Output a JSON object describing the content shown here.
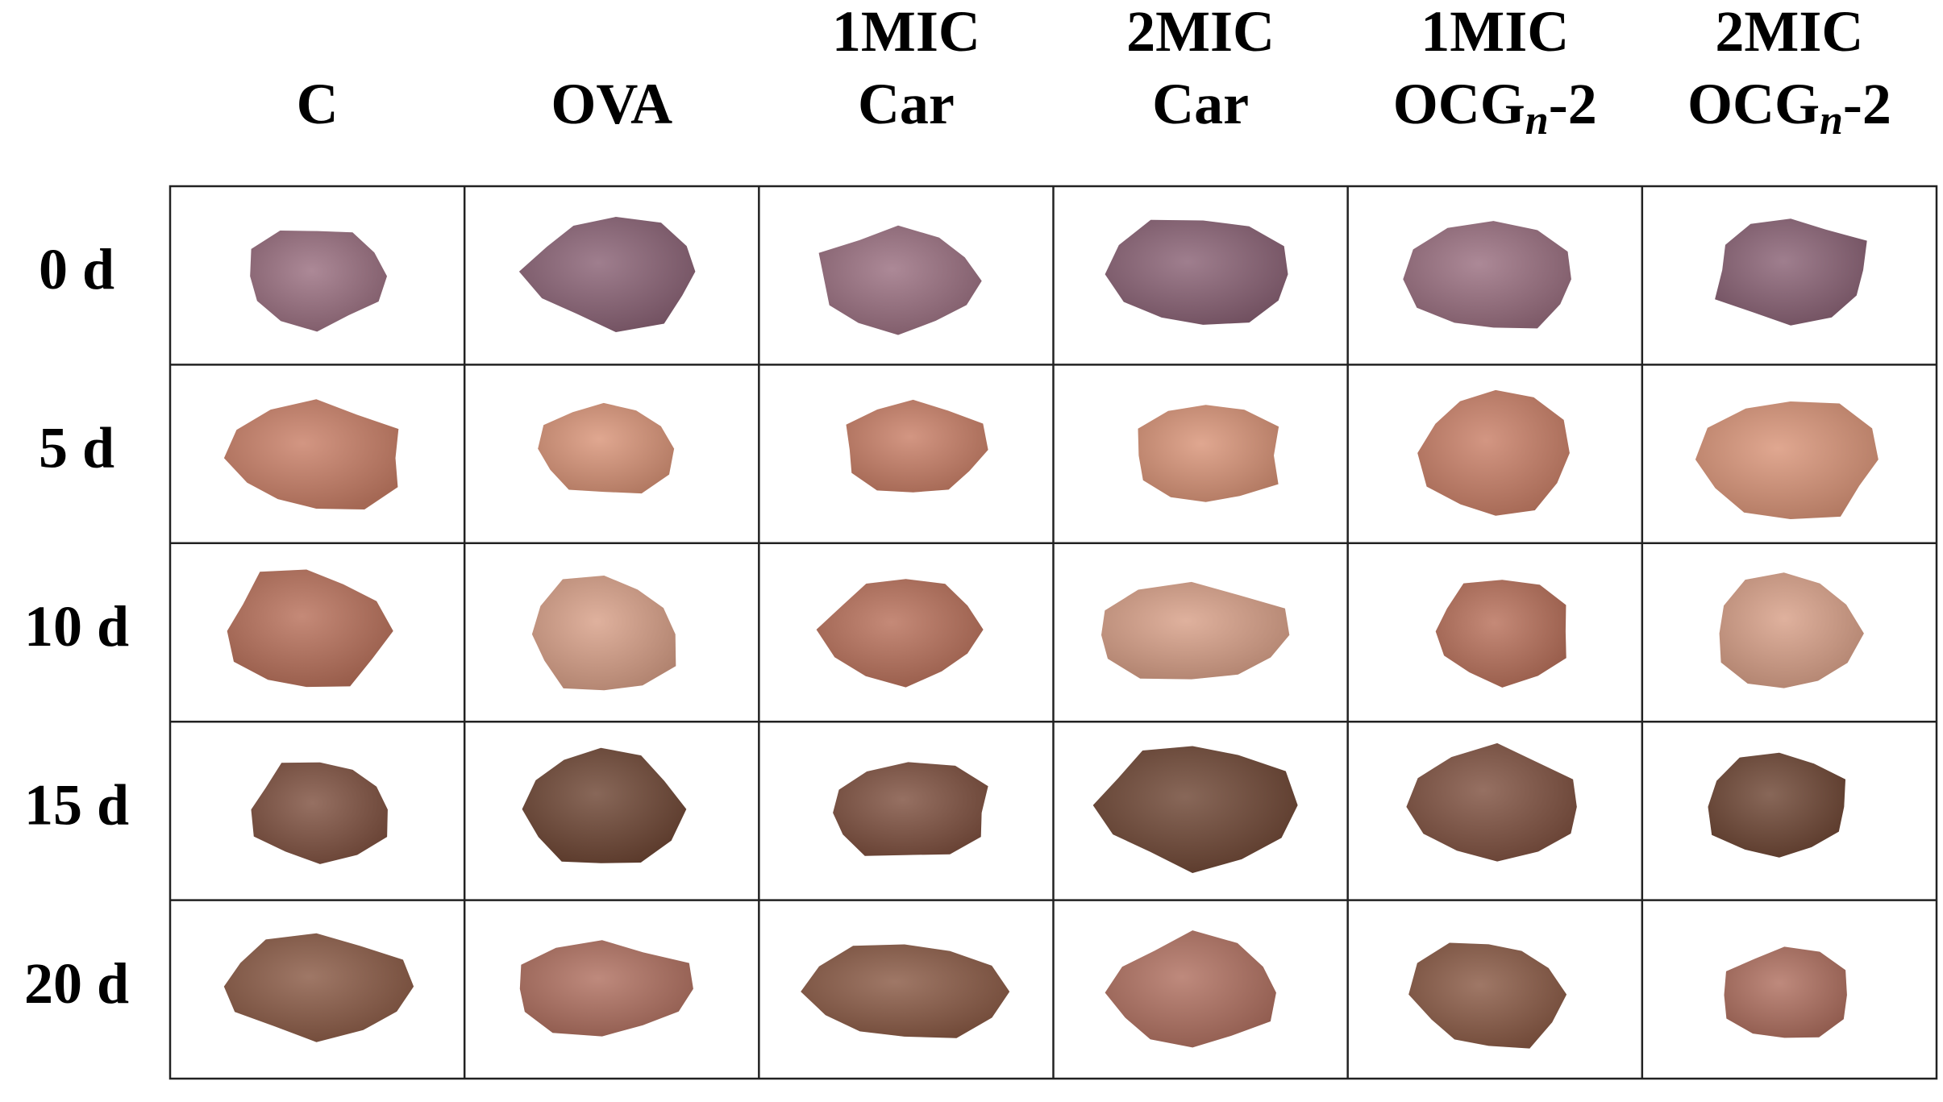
{
  "columns": [
    {
      "lines": [
        {
          "text": "C"
        }
      ]
    },
    {
      "lines": [
        {
          "text": "OVA"
        }
      ]
    },
    {
      "lines": [
        {
          "text": "1MIC"
        },
        {
          "text": "Car"
        }
      ]
    },
    {
      "lines": [
        {
          "text": "2MIC"
        },
        {
          "text": "Car"
        }
      ]
    },
    {
      "lines": [
        {
          "text": "1MIC"
        },
        {
          "text": "OCG",
          "sub": "n",
          "suffix": "-2"
        }
      ]
    },
    {
      "lines": [
        {
          "text": "2MIC"
        },
        {
          "text": "OCG",
          "sub": "n",
          "suffix": "-2"
        }
      ]
    }
  ],
  "rows": [
    "0 d",
    "5 d",
    "10 d",
    "15 d",
    "20 d"
  ]
}
